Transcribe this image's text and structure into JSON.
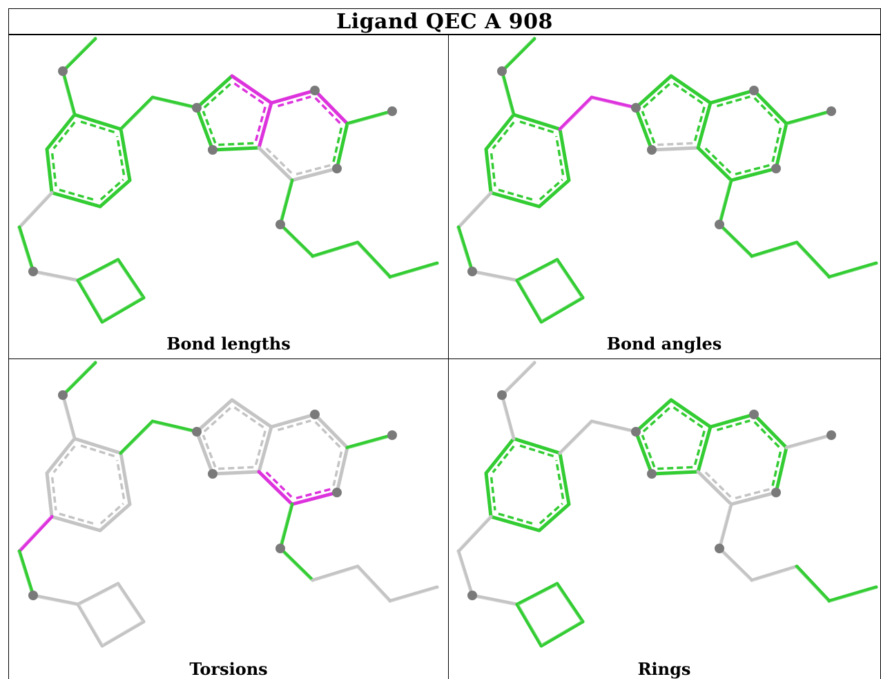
{
  "title": "Ligand QEC A 908",
  "colors": {
    "ok": "#33cc33",
    "outlier": "#dd33dd",
    "neutral": "#c4c4c4",
    "atom": "#7a7a7a"
  },
  "panels": [
    {
      "caption": "Bond lengths",
      "default": "ok",
      "special": {
        "b12": "outlier",
        "b13": "outlier",
        "b17": "outlier",
        "b16": "outlier",
        "b19": "neutral",
        "b20": "neutral",
        "b8": "neutral",
        "b28": "neutral"
      }
    },
    {
      "caption": "Bond angles",
      "default": "ok",
      "special": {
        "b9": "outlier",
        "b10": "outlier",
        "b14": "neutral",
        "b8": "neutral",
        "b28": "neutral"
      }
    },
    {
      "caption": "Torsions",
      "default": "neutral",
      "special": {
        "b0": "ok",
        "b9": "ok",
        "b10": "ok",
        "b27": "ok",
        "b21": "ok",
        "b22": "ok",
        "b23": "ok",
        "b8": "outlier",
        "b19": "outlier",
        "b20": "outlier"
      }
    },
    {
      "caption": "Rings",
      "default": "neutral",
      "special": {
        "b1": "ok",
        "b2": "ok",
        "b3": "ok",
        "b4": "ok",
        "b5": "ok",
        "b6": "ok",
        "b11": "ok",
        "b12": "ok",
        "b13": "ok",
        "b14": "ok",
        "b15": "ok",
        "b16": "ok",
        "b17": "ok",
        "b25": "ok",
        "b26": "ok",
        "b18": "ok",
        "b29": "ok",
        "b30": "ok",
        "b31": "ok",
        "b32": "ok"
      }
    }
  ]
}
